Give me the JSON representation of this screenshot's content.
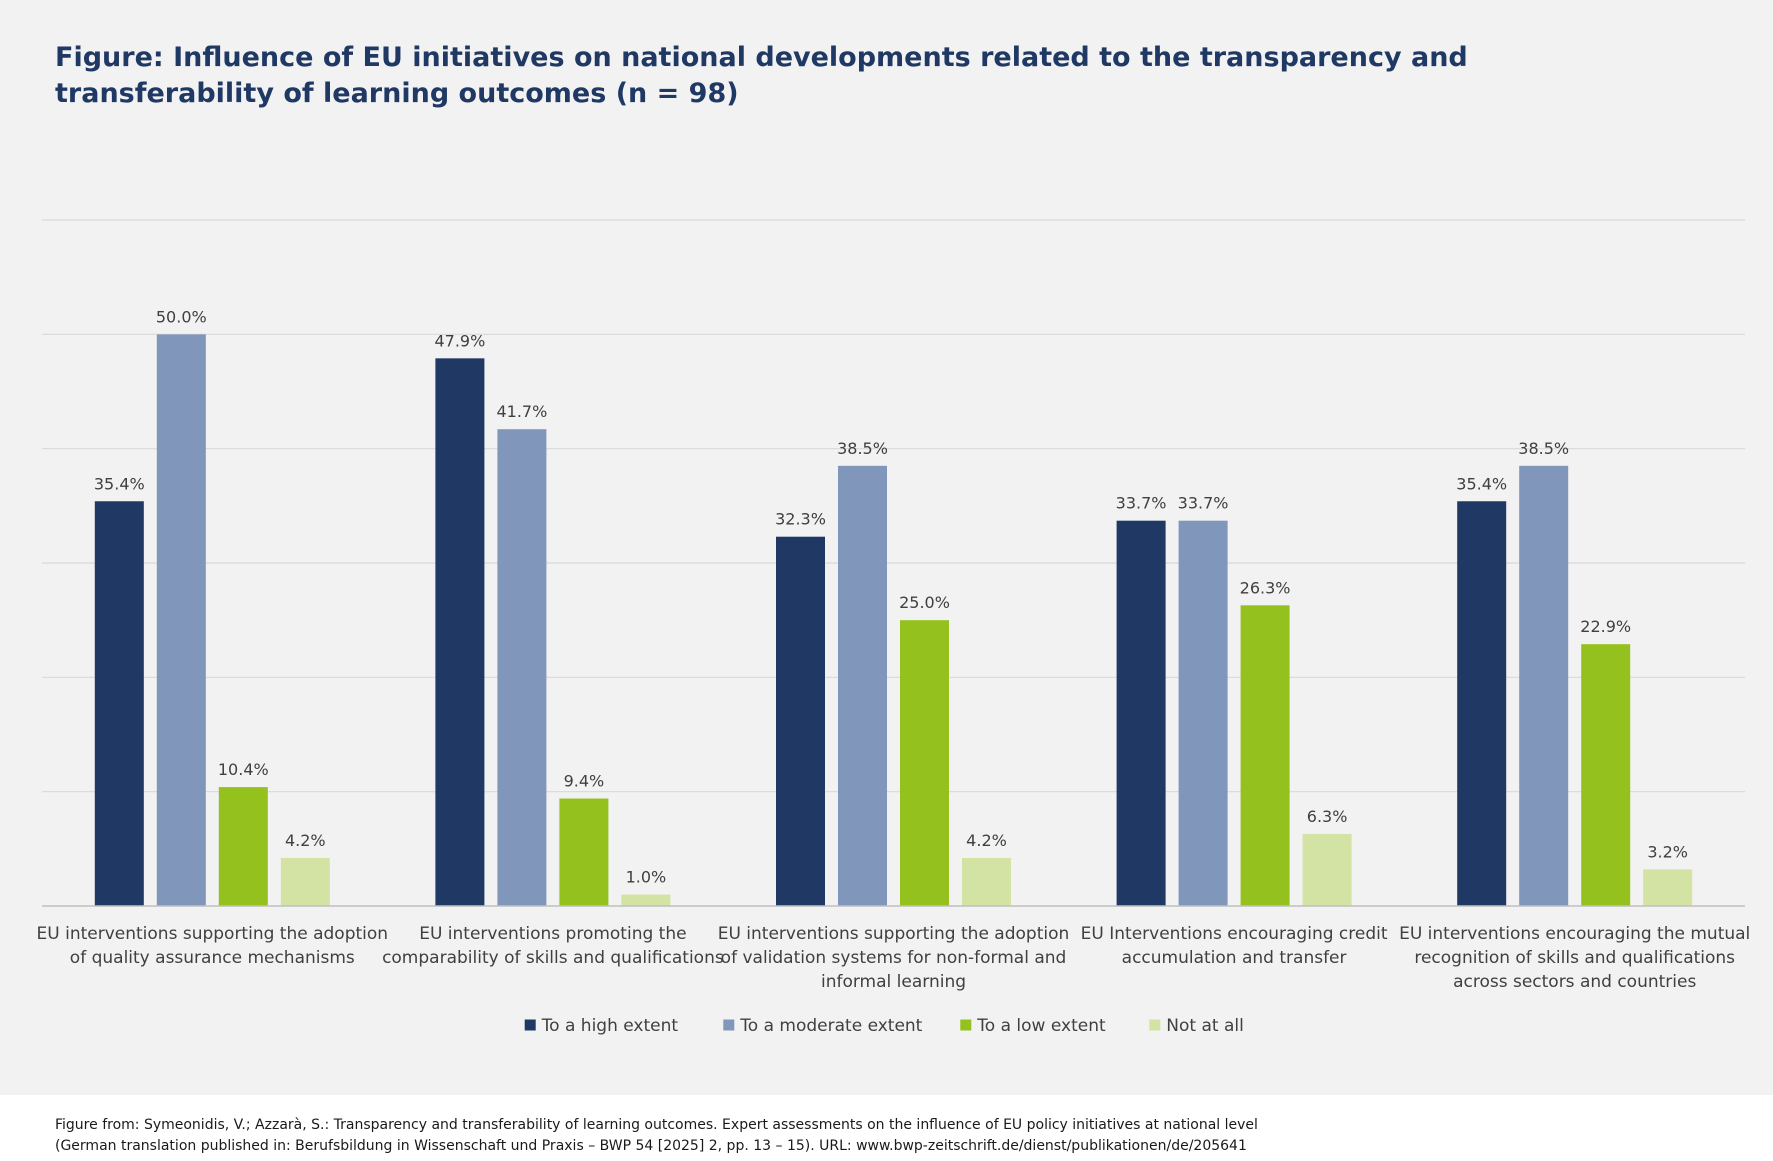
{
  "title": "Figure: Influence of EU initiatives on national developments related to the transparency and transferability of learning outcomes (n = 98)",
  "source": {
    "line1": "Figure from: Symeonidis, V.; Azzarà, S.: Transparency and transferability of learning outcomes. Expert assessments on the influence of EU policy initiatives at national level",
    "line2": "(German translation published in: Berufsbildung in Wissenschaft und Praxis – BWP 54 [2025] 2, pp. 13 – 15). URL: www.bwp-zeitschrift.de/dienst/publikationen/de/205641"
  },
  "colors": {
    "background": "#f2f2f2",
    "grid": "#d9d9d9",
    "text": "#404040",
    "title": "#1f3864"
  },
  "chart_data": {
    "type": "bar",
    "title": "Figure: Influence of EU initiatives on national developments related to the transparency and transferability of learning outcomes (n = 98)",
    "xlabel": "",
    "ylabel": "",
    "ylim": [
      0,
      60
    ],
    "grid": true,
    "legend_position": "bottom",
    "categories": [
      [
        "EU interventions supporting the adoption",
        "of quality assurance mechanisms"
      ],
      [
        "EU interventions promoting the",
        "comparability of skills and qualifications"
      ],
      [
        "EU interventions supporting the adoption",
        "of validation systems for non-formal and",
        "informal learning"
      ],
      [
        "EU Interventions encouraging credit",
        "accumulation and transfer"
      ],
      [
        "EU interventions encouraging the mutual",
        "recognition of skills and qualifications",
        "across sectors and countries"
      ]
    ],
    "series": [
      {
        "name": "To a high extent",
        "color": "#1f3864",
        "values": [
          35.4,
          47.9,
          32.3,
          33.7,
          35.4
        ],
        "labels": [
          "35.4%",
          "47.9%",
          "32.3%",
          "33.7%",
          "35.4%"
        ]
      },
      {
        "name": "To a moderate extent",
        "color": "#8096bb",
        "values": [
          50.0,
          41.7,
          38.5,
          33.7,
          38.5
        ],
        "labels": [
          "50.0%",
          "41.7%",
          "38.5%",
          "33.7%",
          "38.5%"
        ]
      },
      {
        "name": "To a low extent",
        "color": "#95c11f",
        "values": [
          10.4,
          9.4,
          25.0,
          26.3,
          22.9
        ],
        "labels": [
          "10.4%",
          "9.4%",
          "25.0%",
          "26.3%",
          "22.9%"
        ]
      },
      {
        "name": "Not at all",
        "color": "#d2e3a3",
        "values": [
          4.2,
          1.0,
          4.2,
          6.3,
          3.2
        ],
        "labels": [
          "4.2%",
          "1.0%",
          "4.2%",
          "6.3%",
          "3.2%"
        ]
      }
    ]
  }
}
